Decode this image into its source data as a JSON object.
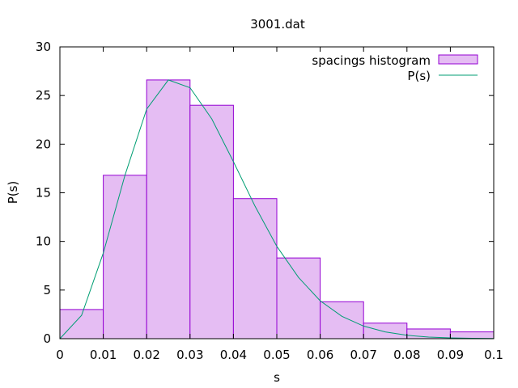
{
  "chart_data": {
    "type": "bar",
    "title": "3001.dat",
    "xlabel": "s",
    "ylabel": "P(s)",
    "xlim": [
      0,
      0.1
    ],
    "ylim": [
      0,
      30
    ],
    "grid": false,
    "legend_position": "top-right",
    "x_ticks": [
      "0",
      "0.01",
      "0.02",
      "0.03",
      "0.04",
      "0.05",
      "0.06",
      "0.07",
      "0.08",
      "0.09",
      "0.1"
    ],
    "y_ticks": [
      "0",
      "5",
      "10",
      "15",
      "20",
      "25",
      "30"
    ],
    "series": [
      {
        "name": "spacings histogram",
        "kind": "histogram",
        "fill_color": "#e5bdf3",
        "edge_color": "#9400d3",
        "bins": [
          {
            "x0": 0.0,
            "x1": 0.01,
            "value": 3.0
          },
          {
            "x0": 0.01,
            "x1": 0.02,
            "value": 16.8
          },
          {
            "x0": 0.02,
            "x1": 0.03,
            "value": 26.6
          },
          {
            "x0": 0.03,
            "x1": 0.04,
            "value": 24.0
          },
          {
            "x0": 0.04,
            "x1": 0.05,
            "value": 14.4
          },
          {
            "x0": 0.05,
            "x1": 0.06,
            "value": 8.3
          },
          {
            "x0": 0.06,
            "x1": 0.07,
            "value": 3.8
          },
          {
            "x0": 0.07,
            "x1": 0.08,
            "value": 1.6
          },
          {
            "x0": 0.08,
            "x1": 0.09,
            "value": 1.0
          },
          {
            "x0": 0.09,
            "x1": 0.1,
            "value": 0.7
          }
        ]
      },
      {
        "name": "P(s)",
        "kind": "line",
        "color": "#009e73",
        "x": [
          0,
          0.005,
          0.01,
          0.015,
          0.02,
          0.025,
          0.03,
          0.035,
          0.04,
          0.045,
          0.05,
          0.055,
          0.06,
          0.065,
          0.07,
          0.075,
          0.08,
          0.085,
          0.09,
          0.095,
          0.1
        ],
        "y": [
          0,
          2.4,
          8.8,
          16.8,
          23.6,
          26.6,
          25.8,
          22.6,
          18.2,
          13.6,
          9.5,
          6.3,
          3.9,
          2.3,
          1.3,
          0.7,
          0.35,
          0.17,
          0.08,
          0.04,
          0.02
        ]
      }
    ]
  }
}
